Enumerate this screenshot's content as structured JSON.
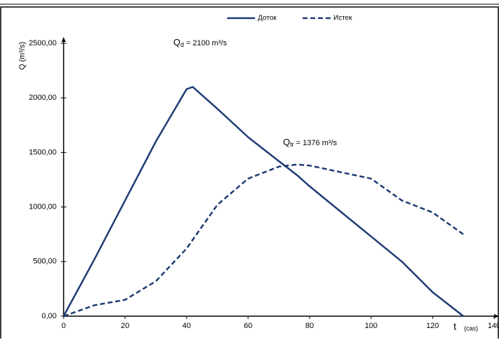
{
  "chart_data": {
    "type": "line",
    "x": [
      0,
      10,
      20,
      30,
      40,
      42,
      50,
      60,
      70,
      76,
      80,
      90,
      100,
      110,
      120,
      130
    ],
    "series": [
      {
        "name": "Доток",
        "color": "#1f3b73",
        "dash": false,
        "values": [
          0,
          520,
          1060,
          1600,
          2080,
          2100,
          1900,
          1640,
          1420,
          1290,
          1190,
          960,
          730,
          500,
          220,
          0
        ]
      },
      {
        "name": "Истек",
        "color": "#1f3b73",
        "dash": true,
        "values": [
          0,
          100,
          150,
          320,
          620,
          700,
          1020,
          1260,
          1370,
          1390,
          1380,
          1320,
          1260,
          1060,
          950,
          750
        ]
      }
    ],
    "xlim": [
      0,
      140
    ],
    "xticks": [
      0,
      20,
      40,
      60,
      80,
      100,
      120,
      140
    ],
    "ylim": [
      0,
      2500
    ],
    "yticks": [
      {
        "value": 0,
        "label": "0,00"
      },
      {
        "value": 500,
        "label": "500,00"
      },
      {
        "value": 1000,
        "label": "1000,00"
      },
      {
        "value": 1500,
        "label": "1500,00"
      },
      {
        "value": 2000,
        "label": "2000,00"
      },
      {
        "value": 2500,
        "label": "2500,00"
      }
    ],
    "y_label": "Q (m³/s)",
    "x_label": {
      "symbol": "t",
      "unit": "(cas)"
    },
    "annotations": [
      {
        "symbol": "Q",
        "sub": "d",
        "text": " = 2100 m³/s"
      },
      {
        "symbol": "Q",
        "sub": "tr",
        "text": " = 1376 m³/s"
      }
    ],
    "legend": "top"
  }
}
